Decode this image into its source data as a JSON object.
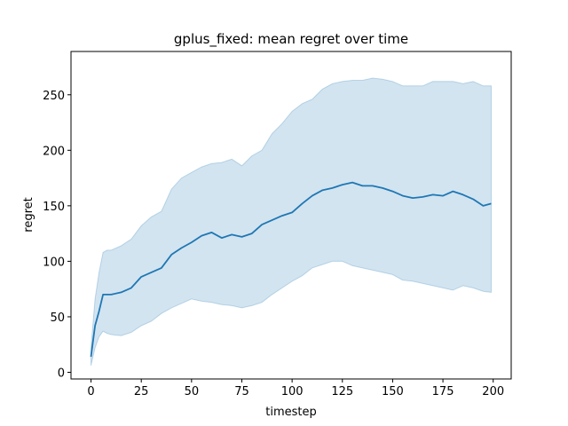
{
  "chart_data": {
    "type": "line",
    "title": "gplus_fixed: mean regret over time",
    "xlabel": "timestep",
    "ylabel": "regret",
    "xlim": [
      -9.95,
      208.95
    ],
    "ylim": [
      -6,
      289
    ],
    "xticks": [
      0,
      25,
      50,
      75,
      100,
      125,
      150,
      175,
      200
    ],
    "yticks": [
      0,
      50,
      100,
      150,
      200,
      250
    ],
    "grid": false,
    "colors": {
      "line": "#1f77b4",
      "band": "#1f77b4",
      "band_opacity": 0.2
    },
    "series": [
      {
        "x": [
          0,
          2,
          4,
          6,
          8,
          10,
          15,
          20,
          25,
          30,
          35,
          40,
          45,
          50,
          55,
          60,
          65,
          70,
          75,
          80,
          85,
          90,
          95,
          100,
          105,
          110,
          115,
          120,
          125,
          130,
          135,
          140,
          145,
          150,
          155,
          160,
          165,
          170,
          175,
          180,
          185,
          190,
          195,
          199
        ],
        "mean": [
          14,
          42,
          55,
          70,
          70,
          70,
          72,
          76,
          86,
          90,
          94,
          106,
          112,
          117,
          123,
          126,
          121,
          124,
          122,
          125,
          133,
          137,
          141,
          144,
          152,
          159,
          164,
          166,
          169,
          171,
          168,
          168,
          166,
          163,
          159,
          157,
          158,
          160,
          159,
          163,
          160,
          156,
          150,
          152
        ],
        "lower": [
          6,
          22,
          32,
          37,
          35,
          34,
          33,
          36,
          42,
          46,
          53,
          58,
          62,
          66,
          64,
          63,
          61,
          60,
          58,
          60,
          63,
          70,
          76,
          82,
          87,
          94,
          97,
          100,
          100,
          96,
          94,
          92,
          90,
          88,
          83,
          82,
          80,
          78,
          76,
          74,
          78,
          76,
          73,
          72
        ],
        "upper": [
          22,
          66,
          90,
          108,
          110,
          110,
          114,
          120,
          132,
          140,
          145,
          165,
          175,
          180,
          185,
          188,
          189,
          192,
          186,
          195,
          200,
          215,
          224,
          235,
          242,
          246,
          255,
          260,
          262,
          263,
          263,
          265,
          264,
          262,
          258,
          258,
          258,
          262,
          262,
          262,
          260,
          262,
          258,
          258
        ]
      }
    ]
  }
}
